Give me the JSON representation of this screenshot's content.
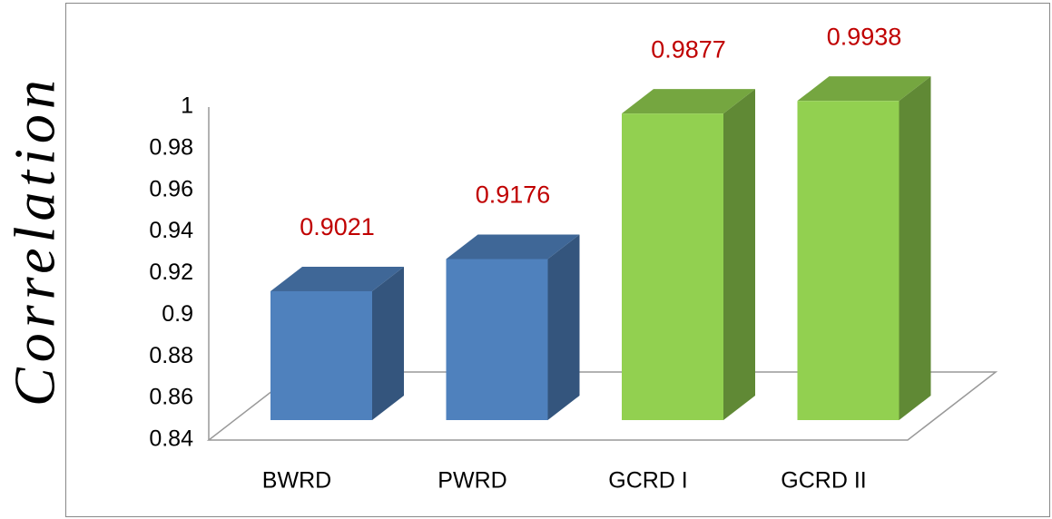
{
  "chart_data": {
    "type": "bar3d",
    "y_label": "Correlation",
    "categories": [
      "BWRD",
      "PWRD",
      "GCRD I",
      "GCRD II"
    ],
    "values": [
      0.9021,
      0.9176,
      0.9877,
      0.9938
    ],
    "colors": [
      "#4f81bd",
      "#4f81bd",
      "#92d050",
      "#92d050"
    ],
    "value_label_color": "#c00000",
    "ylim": [
      0.84,
      1
    ],
    "yticks": [
      0.84,
      0.86,
      0.88,
      0.9,
      0.92,
      0.94,
      0.96,
      0.98,
      1
    ],
    "grid": false
  }
}
